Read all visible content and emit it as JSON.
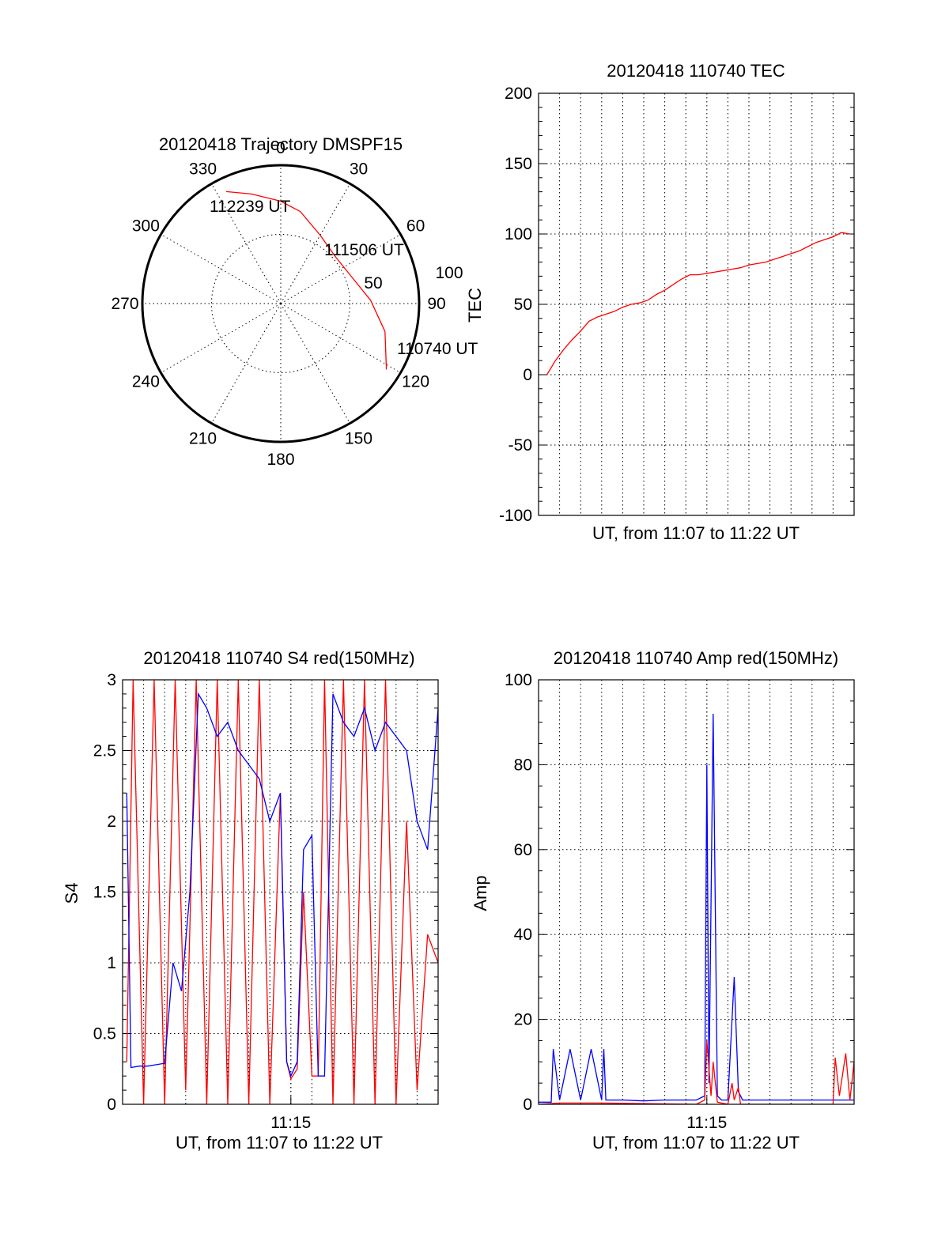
{
  "colors": {
    "red": "#ff0000",
    "blue": "#0000ff"
  },
  "chart_data": [
    {
      "type": "scatter",
      "kind": "polar",
      "title": "20120418 Trajectory DMSPF15",
      "azimuth_labels": [
        "0",
        "30",
        "60",
        "90",
        "120",
        "150",
        "180",
        "210",
        "240",
        "270",
        "300",
        "330"
      ],
      "radial_labels": [
        "50",
        "100"
      ],
      "radial_range": [
        0,
        100
      ],
      "grid": true,
      "annotations": [
        "112239 UT",
        "111506 UT",
        "110740 UT"
      ],
      "series": [
        {
          "color": "red",
          "points": [
            {
              "az": 122,
              "r": 90
            },
            {
              "az": 105,
              "r": 78
            },
            {
              "az": 88,
              "r": 65
            },
            {
              "az": 70,
              "r": 55
            },
            {
              "az": 50,
              "r": 52
            },
            {
              "az": 30,
              "r": 57
            },
            {
              "az": 12,
              "r": 68
            },
            {
              "az": 0,
              "r": 74
            },
            {
              "az": 345,
              "r": 82
            },
            {
              "az": 334,
              "r": 90
            }
          ]
        }
      ]
    },
    {
      "type": "line",
      "title": "20120418 110740 TEC",
      "xlabel": "UT, from 11:07 to 11:22 UT",
      "ylabel": "TEC",
      "xlim": [
        0,
        15
      ],
      "ylim": [
        -100,
        200
      ],
      "yticks": [
        "-100",
        "-50",
        "0",
        "50",
        "100",
        "150",
        "200"
      ],
      "xticks": [],
      "grid": true,
      "series": [
        {
          "color": "red",
          "x": [
            0.4,
            0.8,
            1.2,
            1.6,
            2.0,
            2.4,
            2.8,
            3.2,
            3.6,
            4.0,
            4.4,
            4.8,
            5.2,
            5.6,
            6.0,
            6.4,
            6.8,
            7.2,
            7.6,
            8.0,
            8.4,
            8.8,
            9.2,
            9.6,
            10.0,
            10.4,
            10.8,
            11.2,
            11.6,
            12.0,
            12.4,
            12.8,
            13.2,
            13.6,
            14.0,
            14.4,
            14.8
          ],
          "y": [
            0,
            10,
            18,
            25,
            31,
            38,
            41,
            43,
            45,
            48,
            50,
            51,
            53,
            57,
            60,
            64,
            68,
            71,
            71,
            72,
            73,
            74,
            75,
            76,
            78,
            79,
            80,
            82,
            84,
            86,
            88,
            91,
            94,
            96,
            98,
            101,
            100
          ]
        }
      ]
    },
    {
      "type": "line",
      "title": "20120418 110740 S4 red(150MHz)",
      "xlabel": "UT, from 11:07 to 11:22 UT",
      "ylabel": "S4",
      "xlim": [
        0,
        15
      ],
      "ylim": [
        0,
        3
      ],
      "yticks": [
        "0",
        "0.5",
        "1",
        "1.5",
        "2",
        "2.5",
        "3"
      ],
      "xticks": [
        {
          "x": 8,
          "label": "11:15"
        }
      ],
      "grid": true,
      "series": [
        {
          "color": "red",
          "x": [
            0.2,
            0.5,
            1.0,
            1.5,
            2.0,
            2.5,
            3.0,
            3.5,
            4.0,
            4.5,
            5.0,
            5.5,
            6.0,
            6.5,
            7.0,
            7.5,
            7.8,
            8.0,
            8.3,
            8.6,
            9.0,
            9.3,
            9.6,
            10.0,
            10.5,
            11.0,
            11.5,
            12.0,
            12.5,
            13.0,
            13.5,
            14.0,
            14.5,
            15.0
          ],
          "y": [
            0.3,
            3.0,
            0.0,
            3.0,
            0.0,
            3.0,
            0.1,
            3.0,
            0.0,
            3.0,
            0.0,
            3.0,
            0.0,
            3.0,
            0.0,
            2.2,
            0.3,
            0.18,
            0.25,
            1.5,
            0.2,
            0.2,
            3.0,
            0.0,
            3.0,
            0.0,
            3.0,
            0.0,
            3.0,
            0.0,
            2.0,
            0.1,
            1.2,
            1.0
          ]
        },
        {
          "color": "blue",
          "x": [
            0.2,
            0.4,
            0.8,
            1.2,
            1.6,
            2.0,
            2.4,
            2.8,
            3.2,
            3.6,
            4.0,
            4.5,
            5.0,
            5.5,
            6.0,
            6.5,
            7.0,
            7.5,
            7.8,
            8.0,
            8.3,
            8.6,
            9.0,
            9.3,
            9.6,
            10.0,
            10.5,
            11.0,
            11.5,
            12.0,
            12.5,
            13.0,
            13.5,
            14.0,
            14.5,
            15.0
          ],
          "y": [
            2.2,
            0.26,
            0.27,
            0.27,
            0.28,
            0.29,
            1.0,
            0.8,
            1.5,
            2.9,
            2.8,
            2.6,
            2.7,
            2.5,
            2.4,
            2.3,
            2.0,
            2.2,
            0.3,
            0.2,
            0.3,
            1.8,
            1.9,
            0.2,
            0.2,
            2.9,
            2.7,
            2.6,
            2.8,
            2.5,
            2.7,
            2.6,
            2.5,
            2.0,
            1.8,
            2.8
          ]
        }
      ]
    },
    {
      "type": "line",
      "title": "20120418 110740 Amp red(150MHz)",
      "xlabel": "UT, from 11:07 to 11:22 UT",
      "ylabel": "Amp",
      "xlim": [
        0,
        15
      ],
      "ylim": [
        0,
        100
      ],
      "yticks": [
        "0",
        "20",
        "40",
        "60",
        "80",
        "100"
      ],
      "xticks": [
        {
          "x": 8,
          "label": "11:15"
        }
      ],
      "grid": true,
      "series": [
        {
          "color": "blue",
          "x": [
            0.0,
            0.6,
            0.7,
            1.0,
            1.5,
            2.0,
            2.5,
            3.0,
            3.1,
            3.2,
            4.0,
            5.0,
            6.0,
            7.0,
            7.5,
            7.9,
            8.0,
            8.1,
            8.3,
            8.5,
            8.7,
            9.0,
            9.3,
            9.5,
            9.7,
            10.0,
            10.5,
            11.0,
            12.0,
            13.0,
            14.0,
            14.5,
            15.0
          ],
          "y": [
            0.5,
            0.5,
            13,
            1,
            13,
            1,
            13,
            1,
            13,
            1,
            1,
            0.8,
            1,
            1,
            1,
            2,
            80,
            5,
            92,
            2,
            1,
            1,
            30,
            3,
            1,
            1,
            1,
            1,
            1,
            1,
            1,
            1,
            1
          ]
        },
        {
          "color": "red",
          "x": [
            0.0,
            1.0,
            3.0,
            7.5,
            7.9,
            8.0,
            8.2,
            8.3,
            8.5,
            9.0,
            9.2,
            9.3,
            9.5,
            9.6,
            10.0,
            14.0,
            14.1,
            14.3,
            14.6,
            14.8,
            15.0
          ],
          "y": [
            0,
            0.3,
            0.3,
            0,
            1,
            15,
            2,
            10,
            0.5,
            0,
            5,
            1,
            4,
            0,
            0,
            0,
            11,
            2,
            12,
            1,
            10
          ]
        }
      ]
    }
  ]
}
